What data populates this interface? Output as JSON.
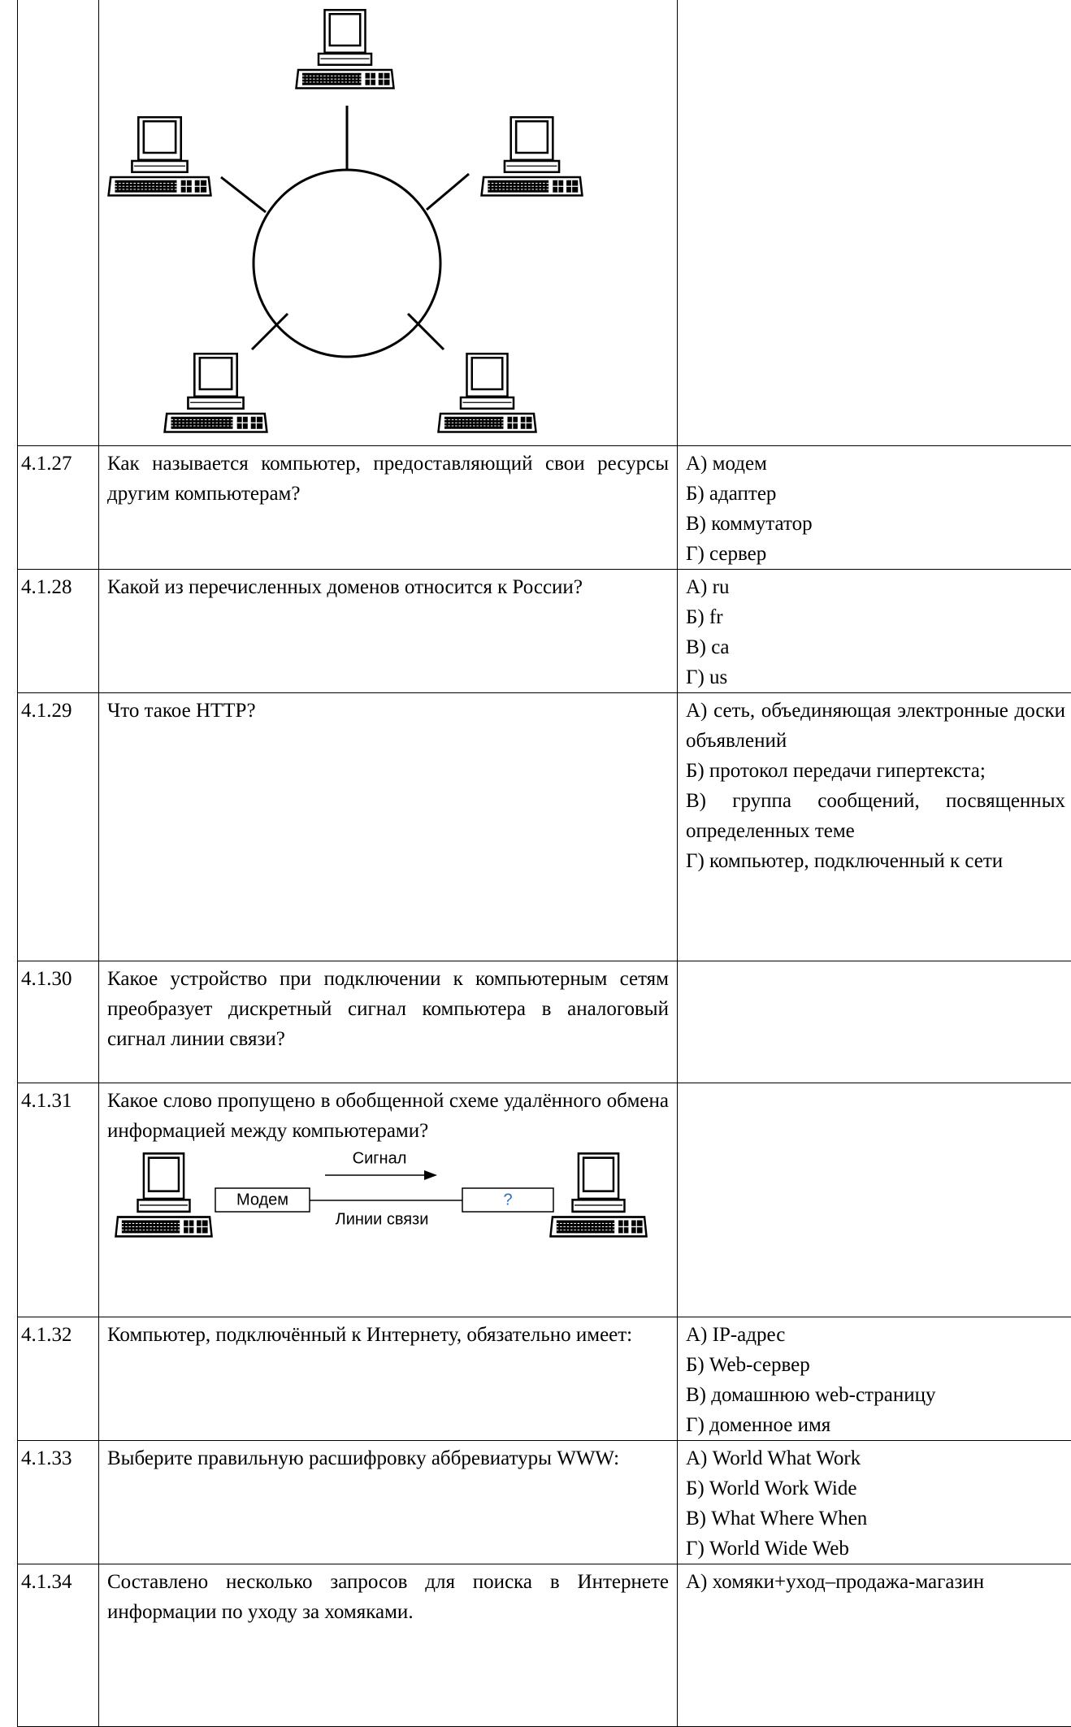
{
  "table": {
    "rows": [
      {
        "number": "4.1.27",
        "question": "Как называется компьютер, предоставляющий свои ресурсы другим компьютерам?",
        "answers": [
          "А) модем",
          "Б) адаптер",
          "В) коммутатор",
          "Г) сервер"
        ]
      },
      {
        "number": "4.1.28",
        "question": "Какой из перечисленных доменов относится к России?",
        "answers": [
          "А) ru",
          "Б) fr",
          "В) ca",
          "Г) us"
        ]
      },
      {
        "number": "4.1.29",
        "question": "Что такое HTTP?",
        "answers": [
          "А) сеть, объединяющая электронные доски объявлений",
          "Б) протокол передачи гипертекста;",
          "В) группа сообщений, посвященных определенных теме",
          "Г) компьютер, подключенный к сети"
        ]
      },
      {
        "number": "4.1.30",
        "question": "Какое устройство при подключении к компьютерным сетям преобразует дискретный сигнал компьютера в аналоговый сигнал линии связи?",
        "answers": []
      },
      {
        "number": "4.1.31",
        "question": "Какое слово пропущено в обобщенной схеме удалённого обмена информацией между компьютерами?",
        "answers": [],
        "diagram": {
          "signal": "Сигнал",
          "modem": "Модем",
          "line": "Линии связи",
          "unknown": "?"
        }
      },
      {
        "number": "4.1.32",
        "question": "Компьютер, подключённый к Интернету, обязательно имеет:",
        "answers": [
          "А) IP-адрес",
          "Б) Web-сервер",
          "В) домашнюю web-страницу",
          "Г) доменное имя"
        ]
      },
      {
        "number": "4.1.33",
        "question": "Выберите правильную расшифровку аббревиатуры WWW:",
        "answers": [
          "А) World What Work",
          "Б) World Work Wide",
          "В) What Where When",
          "Г) World Wide Web"
        ]
      },
      {
        "number": "4.1.34",
        "question": "Составлено несколько запросов для поиска в Интернете информации по уходу за хомяками.",
        "answers": [
          "А) хомяки+уход–продажа-магазин"
        ]
      }
    ]
  }
}
